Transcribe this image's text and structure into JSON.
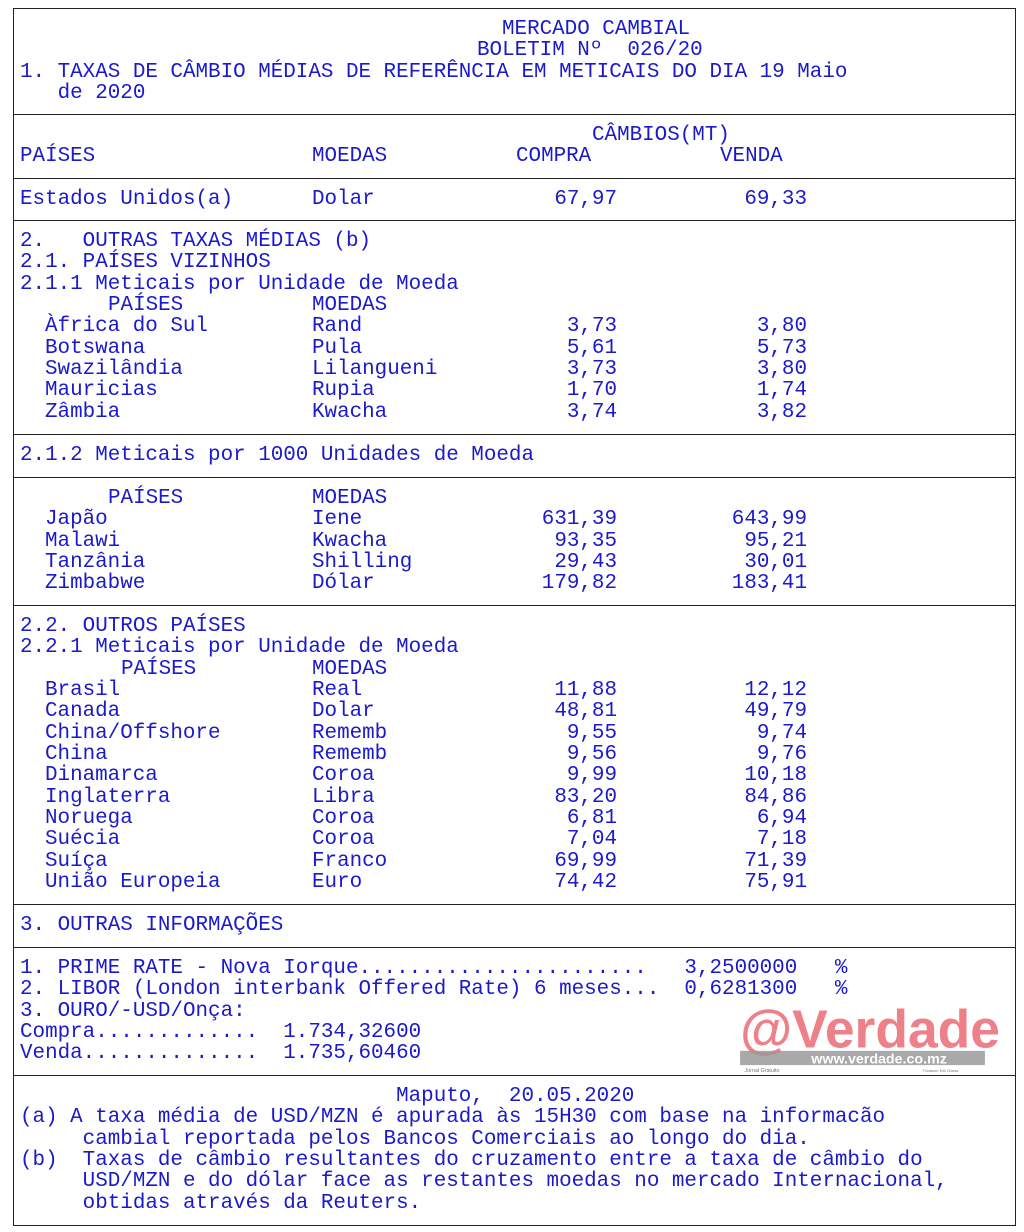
{
  "header": {
    "title": "MERCADO CAMBIAL",
    "bulletin": "BOLETIM Nº  026/20",
    "section1_line1": "1. TAXAS DE CÂMBIO MÉDIAS DE REFERÊNCIA EM METICAIS DO DIA 19 Maio",
    "section1_line2": "   de 2020"
  },
  "columns": {
    "group": "CÂMBIOS(MT)",
    "country": "PAÍSES",
    "currency": "MOEDAS",
    "buy": "COMPRA",
    "sell": "VENDA"
  },
  "usd": {
    "country": "Estados Unidos(a)",
    "currency": "Dolar",
    "buy": "67,97",
    "sell": "69,33"
  },
  "sec2": {
    "l1": "2.   OUTRAS TAXAS MÉDIAS (b)",
    "l2": "2.1. PAÍSES VIZINHOS",
    "l3": "2.1.1 Meticais por Unidade de Moeda",
    "rows": [
      [
        "Àfrica do Sul",
        "Rand",
        "3,73",
        "3,80"
      ],
      [
        "Botswana",
        "Pula",
        "5,61",
        "5,73"
      ],
      [
        "Swazilândia",
        "Lilangueni",
        "3,73",
        "3,80"
      ],
      [
        "Mauricias",
        "Rupia",
        "1,70",
        "1,74"
      ],
      [
        "Zâmbia",
        "Kwacha",
        "3,74",
        "3,82"
      ]
    ]
  },
  "sec212": {
    "title": "2.1.2 Meticais por 1000 Unidades de Moeda",
    "rows": [
      [
        "Japão",
        "Iene",
        "631,39",
        "643,99"
      ],
      [
        "Malawi",
        "Kwacha",
        "93,35",
        "95,21"
      ],
      [
        "Tanzânia",
        "Shilling",
        "29,43",
        "30,01"
      ],
      [
        "Zimbabwe",
        "Dólar",
        "179,82",
        "183,41"
      ]
    ]
  },
  "sec22": {
    "l1": "2.2. OUTROS PAÍSES",
    "l2": "2.2.1 Meticais por Unidade de Moeda",
    "rows": [
      [
        "Brasil",
        "Real",
        "11,88",
        "12,12"
      ],
      [
        "Canada",
        "Dolar",
        "48,81",
        "49,79"
      ],
      [
        "China/Offshore",
        "Rememb",
        "9,55",
        "9,74"
      ],
      [
        "China",
        "Rememb",
        "9,56",
        "9,76"
      ],
      [
        "Dinamarca",
        "Coroa",
        "9,99",
        "10,18"
      ],
      [
        "Inglaterra",
        "Libra",
        "83,20",
        "84,86"
      ],
      [
        "Noruega",
        "Coroa",
        "6,81",
        "6,94"
      ],
      [
        "Suécia",
        "Coroa",
        "7,04",
        "7,18"
      ],
      [
        "Suíça",
        "Franco",
        "69,99",
        "71,39"
      ],
      [
        "União Europeia",
        "Euro",
        "74,42",
        "75,91"
      ]
    ]
  },
  "sec3": {
    "title": "3. OUTRAS INFORMAÇÕES",
    "l1": "1. PRIME RATE - Nova Iorque.......................   3,2500000   %",
    "l2": "2. LIBOR (London interbank Offered Rate) 6 meses...  0,6281300   %",
    "l3": "3. OURO/-USD/Onça:",
    "l4": "Compra.............  1.734,32600",
    "l5": "Venda..............  1.735,60460"
  },
  "footer": {
    "l1": "                              Maputo,  20.05.2020",
    "l2": "(a) A taxa média de USD/MZN é apurada às 15H30 com base na informacão",
    "l3": "     cambial reportada pelos Bancos Comerciais ao longo do dia.",
    "l4": "(b)  Taxas de câmbio resultantes do cruzamento entre a taxa de câmbio do",
    "l5": "     USD/MZN e do dólar face as restantes moedas no mercado Internacional,",
    "l6": "     obtidas através da Reuters."
  },
  "watermark": {
    "logo": "@Verdade",
    "url": "www.verdade.co.mz",
    "tagline": "Jornal Gratuito",
    "founder": "Fundador: Erik Charas",
    "color": "#e8606a"
  },
  "colors": {
    "text": "#1a1acc",
    "border": "#222222"
  }
}
